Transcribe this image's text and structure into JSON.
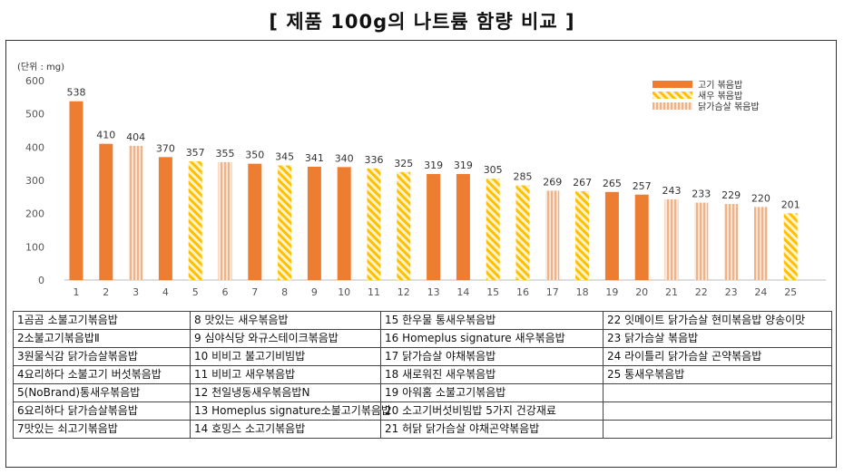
{
  "title": "[ 제품 100g의 나트륨 함량 비교 ]",
  "chart_data": {
    "type": "bar",
    "unit_label": "(단위 : mg)",
    "ylim": [
      0,
      600
    ],
    "yticks": [
      0,
      100,
      200,
      300,
      400,
      500,
      600
    ],
    "grid": false,
    "legend_position": "top-right",
    "categories": [
      "1",
      "2",
      "3",
      "4",
      "5",
      "6",
      "7",
      "8",
      "9",
      "10",
      "11",
      "12",
      "13",
      "14",
      "15",
      "16",
      "17",
      "18",
      "19",
      "20",
      "21",
      "22",
      "23",
      "24",
      "25"
    ],
    "values": [
      538,
      410,
      404,
      370,
      357,
      355,
      350,
      345,
      341,
      340,
      336,
      325,
      319,
      319,
      305,
      285,
      269,
      267,
      265,
      257,
      243,
      233,
      229,
      220,
      201
    ],
    "value_labels": [
      "538",
      "410",
      "404",
      "370",
      "357",
      "355",
      "350",
      "345",
      "341",
      "340",
      "336",
      "325",
      "319",
      "319",
      "305",
      "285",
      "269",
      "267",
      "265",
      "257",
      "243",
      "233",
      "229",
      "220",
      "201"
    ],
    "bar_types": [
      "beef",
      "beef",
      "chicken",
      "beef",
      "shrimp",
      "chicken",
      "beef",
      "shrimp",
      "beef",
      "beef",
      "shrimp",
      "shrimp",
      "beef",
      "beef",
      "shrimp",
      "shrimp",
      "chicken",
      "shrimp",
      "beef",
      "beef",
      "chicken",
      "chicken",
      "chicken",
      "chicken",
      "shrimp"
    ],
    "legend": [
      {
        "key": "beef",
        "label": "고기 볶음밥"
      },
      {
        "key": "shrimp",
        "label": "새우 볶음밥"
      },
      {
        "key": "chicken",
        "label": "닭가슴살 볶음밥"
      }
    ],
    "colors": {
      "orange": "#ED7D31",
      "yellow": "#FFC000",
      "light": "#F8CBAD"
    }
  },
  "products": [
    [
      "1곰곰 소불고기볶음밥",
      "8 맛있는 새우볶음밥",
      "15 한우물 통새우볶음밥",
      "22 잇메이트 닭가슴살 현미볶음밥 양송이맛"
    ],
    [
      "2소불고기볶음밥Ⅱ",
      "9 심야식당 와규스테이크볶음밥",
      "16 Homeplus signature 새우볶음밥",
      "23 닭가슴살 볶음밥"
    ],
    [
      "3원물식감 닭가슴살볶음밥",
      "10 비비고 불고기비빔밥",
      "17 닭가슴살 야채볶음밥",
      "24 라이틀리 닭가슴살 곤약볶음밥"
    ],
    [
      "4요리하다 소불고기 버섯볶음밥",
      "11 비비고 새우볶음밥",
      "18 새로워진 새우볶음밥",
      "25 통새우볶음밥"
    ],
    [
      "5(NoBrand)통새우볶음밥",
      "12 천일냉동새우볶음밥N",
      "19 아워홈 소불고기볶음밥",
      ""
    ],
    [
      "6요리하다 닭가슴살볶음밥",
      "13 Homeplus signature소불고기볶음밥",
      "20 소고기버섯비빔밥 5가지 건강재료",
      ""
    ],
    [
      "7맛있는 쇠고기볶음밥",
      "14 호밍스 소고기볶음밥",
      "21 허닭 닭가슴살 야채곤약볶음밥",
      ""
    ]
  ]
}
